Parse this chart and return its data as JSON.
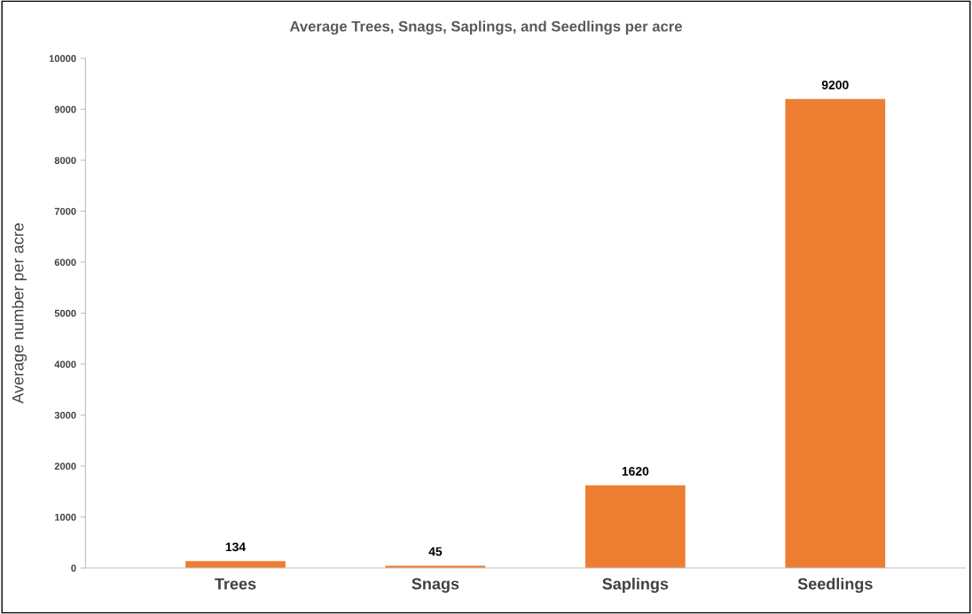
{
  "chart_data": {
    "type": "bar",
    "title": "Average Trees, Snags, Saplings, and Seedlings per acre",
    "ylabel": "Average number per acre",
    "categories": [
      "Trees",
      "Snags",
      "Saplings",
      "Seedlings"
    ],
    "values": [
      134,
      45,
      1620,
      9200
    ],
    "color": "#ed7d31",
    "ylim": [
      0,
      10000
    ],
    "yticks": [
      0,
      1000,
      2000,
      3000,
      4000,
      5000,
      6000,
      7000,
      8000,
      9000,
      10000
    ],
    "grid": false,
    "legend": false,
    "data_labels": true
  }
}
